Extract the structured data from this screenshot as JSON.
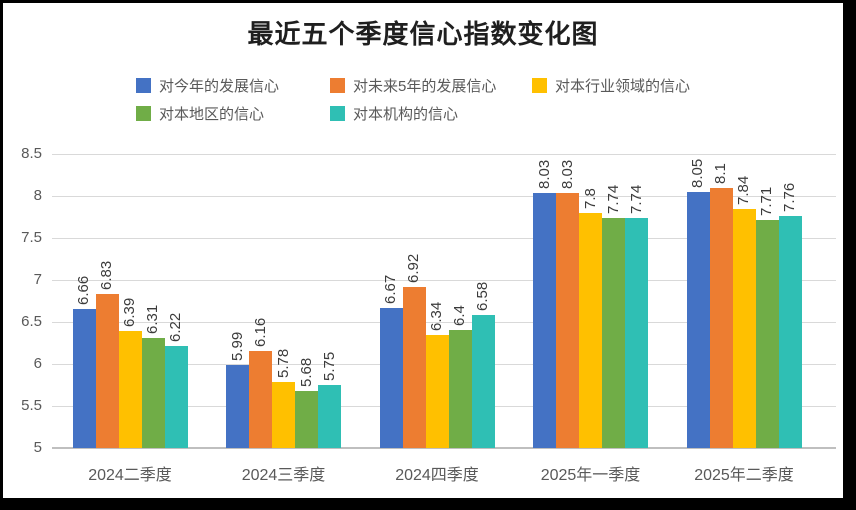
{
  "frame": {
    "border_color": "#000000",
    "panel_color": "#ffffff"
  },
  "title": "最近五个季度信心指数变化图",
  "axes": {
    "y_tick_labels": [
      "8.5",
      "8",
      "7.5",
      "7",
      "6.5",
      "6",
      "5.5",
      "5"
    ]
  },
  "chart_data": {
    "type": "bar",
    "title": "最近五个季度信心指数变化图",
    "categories": [
      "2024二季度",
      "2024三季度",
      "2024四季度",
      "2025年一季度",
      "2025年二季度"
    ],
    "series": [
      {
        "name": "对今年的发展信心",
        "color": "#4472C4",
        "values": [
          6.66,
          5.99,
          6.67,
          8.03,
          8.05
        ]
      },
      {
        "name": "对未来5年的发展信心",
        "color": "#ED7D31",
        "values": [
          6.83,
          6.16,
          6.92,
          8.03,
          8.1
        ]
      },
      {
        "name": "对本行业领域的信心",
        "color": "#FFC000",
        "values": [
          6.39,
          5.78,
          6.34,
          7.8,
          7.84
        ]
      },
      {
        "name": "对本地区的信心",
        "color": "#70AD47",
        "values": [
          6.31,
          5.68,
          6.4,
          7.74,
          7.71
        ]
      },
      {
        "name": "对本机构的信心",
        "color": "#2FBFB4",
        "values": [
          6.22,
          5.75,
          6.58,
          7.74,
          7.76
        ]
      }
    ],
    "ylim": [
      5,
      8.5
    ],
    "ytick_step": 0.5,
    "grid": true,
    "legend_position": "top",
    "value_labels_rotated": true
  }
}
